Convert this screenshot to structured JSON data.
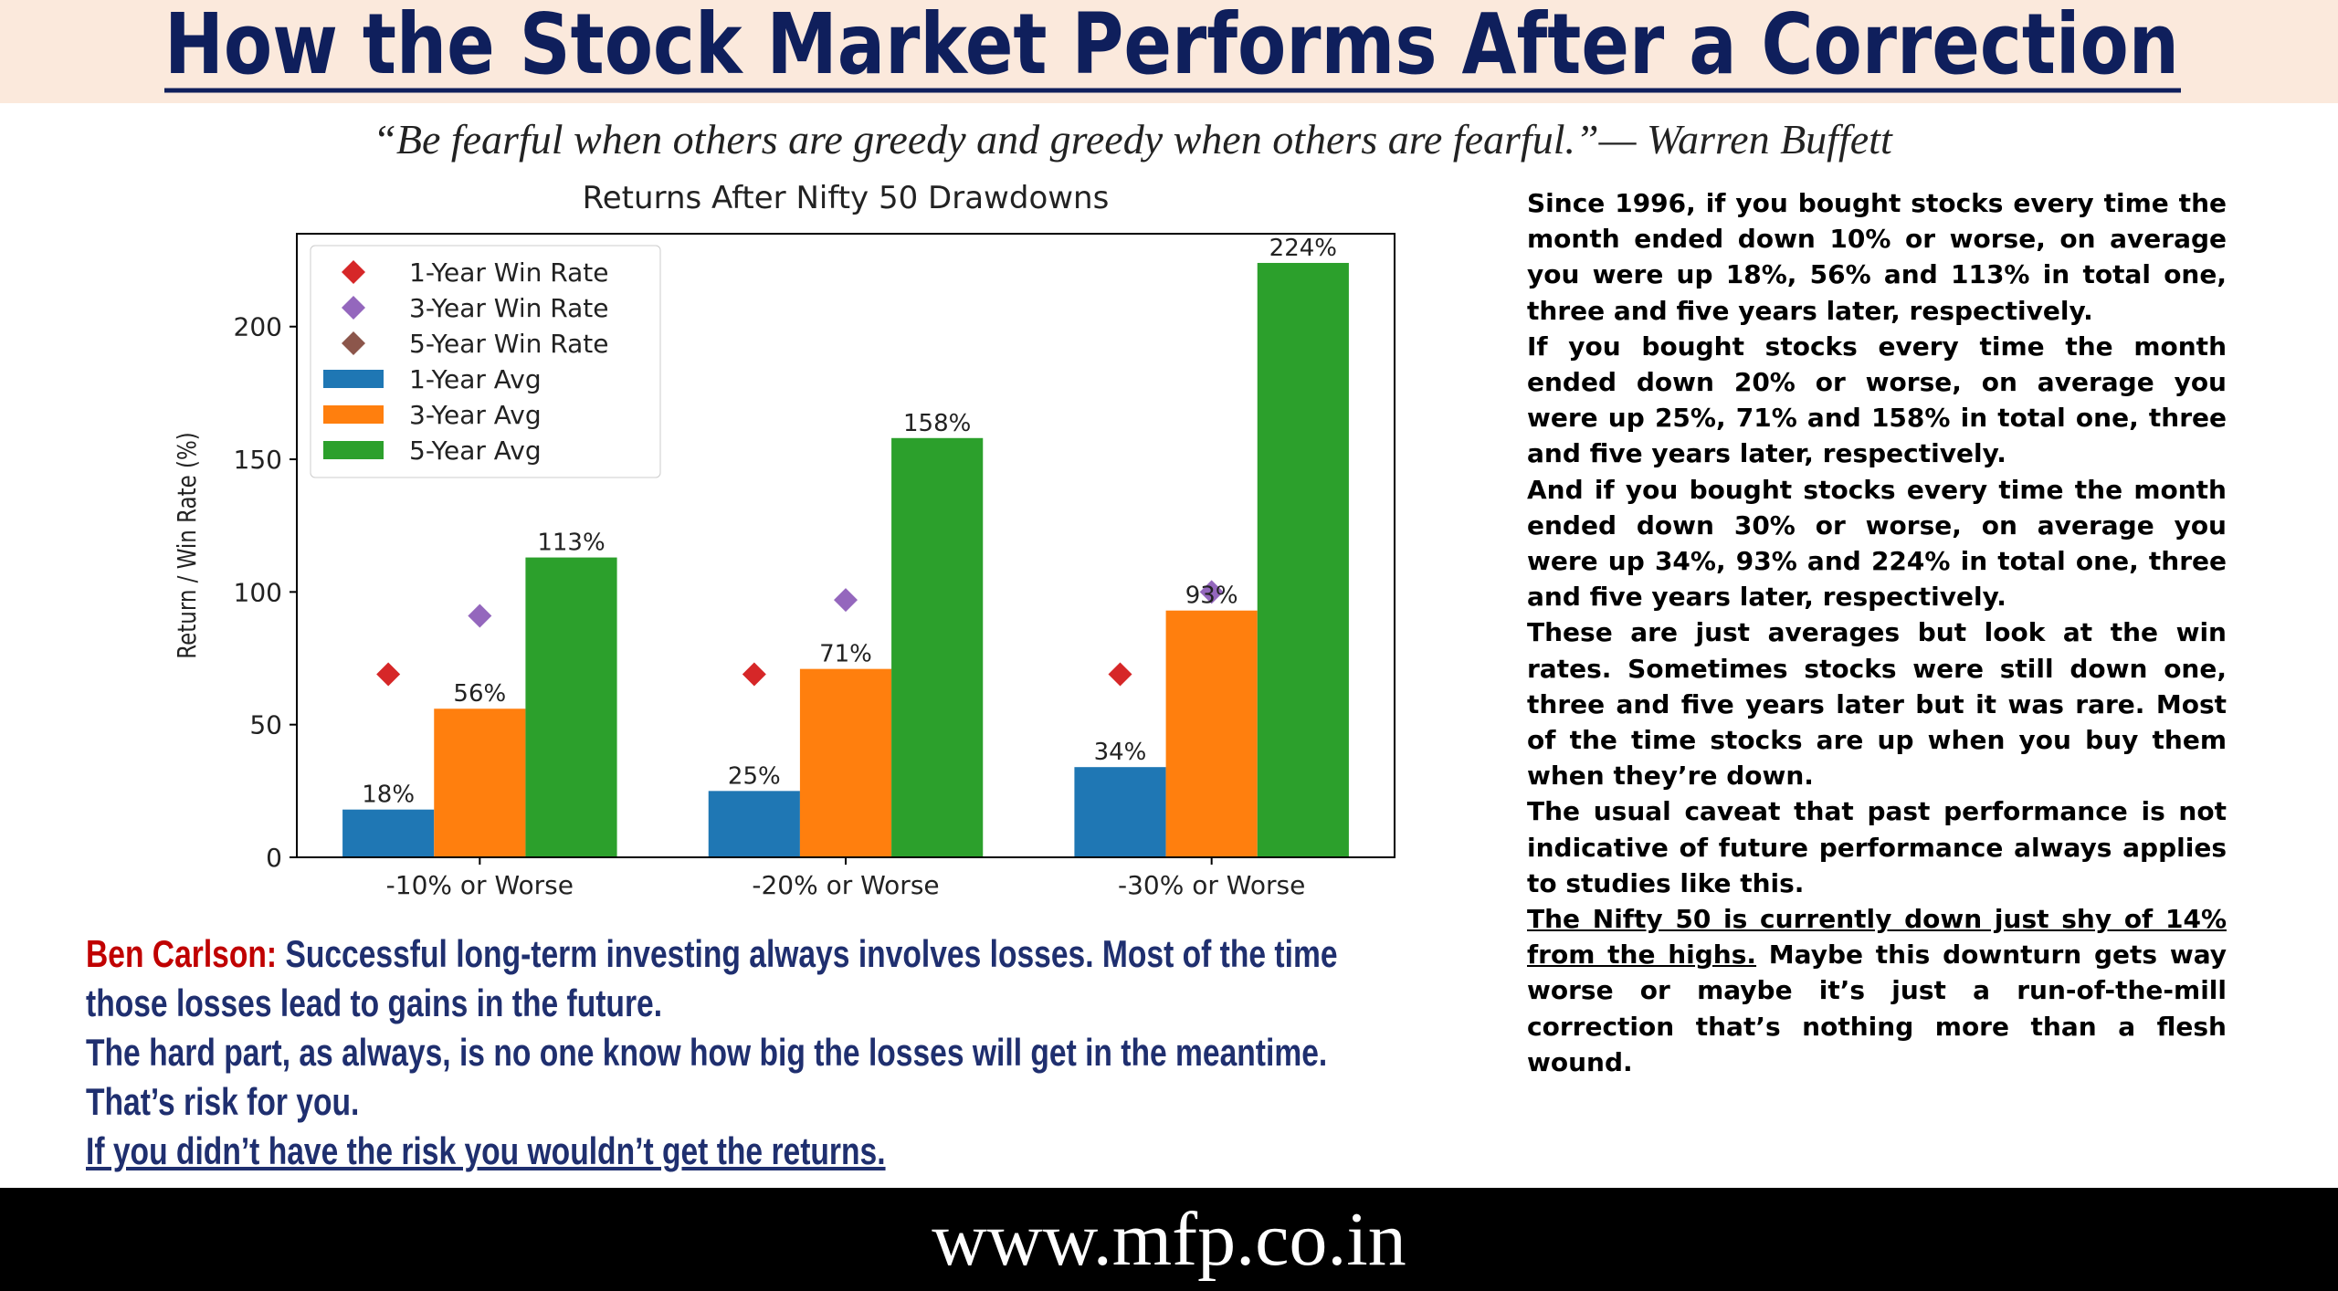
{
  "header": {
    "title": "How the Stock Market Performs After a Correction",
    "quote": "“Be fearful when others are greedy and greedy when others are fearful.”— Warren Buffett"
  },
  "chart_data": {
    "type": "bar",
    "title": "Returns After Nifty 50 Drawdowns",
    "y_label": "Return / Win Rate (%)",
    "categories": [
      "-10% or Worse",
      "-20% or Worse",
      "-30% or Worse"
    ],
    "ylim": [
      0,
      235
    ],
    "yticks": [
      0,
      50,
      100,
      150,
      200
    ],
    "grid": false,
    "legend": "upper-left",
    "series": [
      {
        "name": "1-Year Win Rate",
        "type": "scatter",
        "color": "#d62728",
        "values": [
          69,
          69,
          69
        ]
      },
      {
        "name": "3-Year Win Rate",
        "type": "scatter",
        "color": "#9467bd",
        "values": [
          91,
          97,
          100
        ]
      },
      {
        "name": "5-Year Win Rate",
        "type": "scatter",
        "color": "#8c564b",
        "values": [
          93,
          99,
          100
        ]
      },
      {
        "name": "1-Year Avg",
        "type": "bar",
        "color": "#1f77b4",
        "values": [
          18,
          25,
          34
        ],
        "value_labels": [
          "18%",
          "25%",
          "34%"
        ]
      },
      {
        "name": "3-Year Avg",
        "type": "bar",
        "color": "#ff7f0e",
        "values": [
          56,
          71,
          93
        ],
        "value_labels": [
          "56%",
          "71%",
          "93%"
        ]
      },
      {
        "name": "5-Year Avg",
        "type": "bar",
        "color": "#2ca02c",
        "values": [
          113,
          158,
          224
        ],
        "value_labels": [
          "113%",
          "158%",
          "224%"
        ]
      }
    ]
  },
  "commentary": {
    "paragraphs": [
      "Since 1996, if you bought stocks every time the month ended down 10% or worse, on average you were up 18%, 56% and 113% in total one, three and five years later, respectively.",
      "If you bought stocks every time the month ended down 20% or worse, on average you were up 25%, 71% and 158% in total one, three and five years later, respectively.",
      "And if you bought stocks every time the month ended down 30% or worse, on average you were up 34%, 93% and 224% in total one, three and five years later, respectively.",
      "These are just averages but look at the win rates. Sometimes stocks were still down one, three and five years later but it was rare. Most of the time stocks are up when you buy them when they’re down.",
      "The usual caveat that past performance is not indicative of future performance always applies to studies like this."
    ],
    "final_underlined": "The Nifty 50 is currently down just shy of 14% from the highs.",
    "final_rest": " Maybe this downturn gets way worse or maybe it’s just a run-of-the-mill correction that’s nothing more than a flesh wound."
  },
  "carlson": {
    "speaker": "Ben Carlson:",
    "lines": [
      "Successful long-term investing always involves losses. Most of the time",
      "those losses lead to gains in the future.",
      "The hard part, as always, is no one know how big the losses will get in the meantime.",
      "That’s risk for you.",
      "If you didn’t have the risk you wouldn’t get the returns."
    ]
  },
  "footer": {
    "url": "www.mfp.co.in"
  }
}
